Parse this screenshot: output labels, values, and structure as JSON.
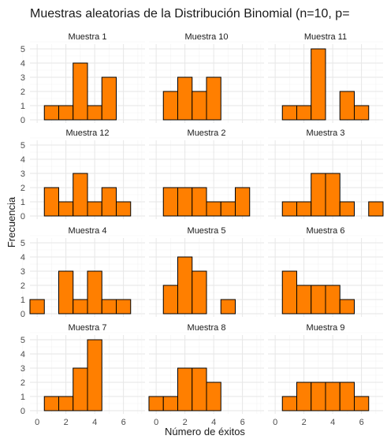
{
  "chart_data": {
    "type": "bar",
    "title": "Muestras aleatorias de la Distribución Binomial (n=10, p=",
    "xlabel": "Número de éxitos",
    "ylabel": "Frecuencia",
    "xlim": [
      -0.5,
      7.5
    ],
    "ylim": [
      0,
      5
    ],
    "x_ticks": [
      0,
      2,
      4,
      6
    ],
    "y_ticks": [
      0,
      1,
      2,
      3,
      4,
      5
    ],
    "grid": true,
    "bar_color": "#FF7F00",
    "bar_outline": "#000000",
    "facets": [
      {
        "name": "Muestra 1",
        "bars": [
          {
            "x": 1,
            "count": 1
          },
          {
            "x": 2,
            "count": 1
          },
          {
            "x": 3,
            "count": 4
          },
          {
            "x": 4,
            "count": 1
          },
          {
            "x": 5,
            "count": 3
          }
        ]
      },
      {
        "name": "Muestra 10",
        "bars": [
          {
            "x": 1,
            "count": 2
          },
          {
            "x": 2,
            "count": 3
          },
          {
            "x": 3,
            "count": 2
          },
          {
            "x": 4,
            "count": 3
          }
        ]
      },
      {
        "name": "Muestra 11",
        "bars": [
          {
            "x": 1,
            "count": 1
          },
          {
            "x": 2,
            "count": 1
          },
          {
            "x": 3,
            "count": 5
          },
          {
            "x": 5,
            "count": 2
          },
          {
            "x": 6,
            "count": 1
          }
        ]
      },
      {
        "name": "Muestra 12",
        "bars": [
          {
            "x": 1,
            "count": 2
          },
          {
            "x": 2,
            "count": 1
          },
          {
            "x": 3,
            "count": 3
          },
          {
            "x": 4,
            "count": 1
          },
          {
            "x": 5,
            "count": 2
          },
          {
            "x": 6,
            "count": 1
          }
        ]
      },
      {
        "name": "Muestra 2",
        "bars": [
          {
            "x": 1,
            "count": 2
          },
          {
            "x": 2,
            "count": 2
          },
          {
            "x": 3,
            "count": 2
          },
          {
            "x": 4,
            "count": 1
          },
          {
            "x": 5,
            "count": 1
          },
          {
            "x": 6,
            "count": 2
          }
        ]
      },
      {
        "name": "Muestra 3",
        "bars": [
          {
            "x": 1,
            "count": 1
          },
          {
            "x": 2,
            "count": 1
          },
          {
            "x": 3,
            "count": 3
          },
          {
            "x": 4,
            "count": 3
          },
          {
            "x": 5,
            "count": 1
          },
          {
            "x": 7,
            "count": 1
          }
        ]
      },
      {
        "name": "Muestra 4",
        "bars": [
          {
            "x": 0,
            "count": 1
          },
          {
            "x": 2,
            "count": 3
          },
          {
            "x": 3,
            "count": 1
          },
          {
            "x": 4,
            "count": 3
          },
          {
            "x": 5,
            "count": 1
          },
          {
            "x": 6,
            "count": 1
          }
        ]
      },
      {
        "name": "Muestra 5",
        "bars": [
          {
            "x": 1,
            "count": 2
          },
          {
            "x": 2,
            "count": 4
          },
          {
            "x": 3,
            "count": 3
          },
          {
            "x": 5,
            "count": 1
          }
        ]
      },
      {
        "name": "Muestra 6",
        "bars": [
          {
            "x": 1,
            "count": 3
          },
          {
            "x": 2,
            "count": 2
          },
          {
            "x": 3,
            "count": 2
          },
          {
            "x": 4,
            "count": 2
          },
          {
            "x": 5,
            "count": 1
          }
        ]
      },
      {
        "name": "Muestra 7",
        "bars": [
          {
            "x": 1,
            "count": 1
          },
          {
            "x": 2,
            "count": 1
          },
          {
            "x": 3,
            "count": 3
          },
          {
            "x": 4,
            "count": 5
          }
        ]
      },
      {
        "name": "Muestra 8",
        "bars": [
          {
            "x": 0,
            "count": 1
          },
          {
            "x": 1,
            "count": 1
          },
          {
            "x": 2,
            "count": 3
          },
          {
            "x": 3,
            "count": 3
          },
          {
            "x": 4,
            "count": 2
          }
        ]
      },
      {
        "name": "Muestra 9",
        "bars": [
          {
            "x": 1,
            "count": 1
          },
          {
            "x": 2,
            "count": 2
          },
          {
            "x": 3,
            "count": 2
          },
          {
            "x": 4,
            "count": 2
          },
          {
            "x": 5,
            "count": 2
          },
          {
            "x": 6,
            "count": 1
          }
        ]
      }
    ]
  }
}
